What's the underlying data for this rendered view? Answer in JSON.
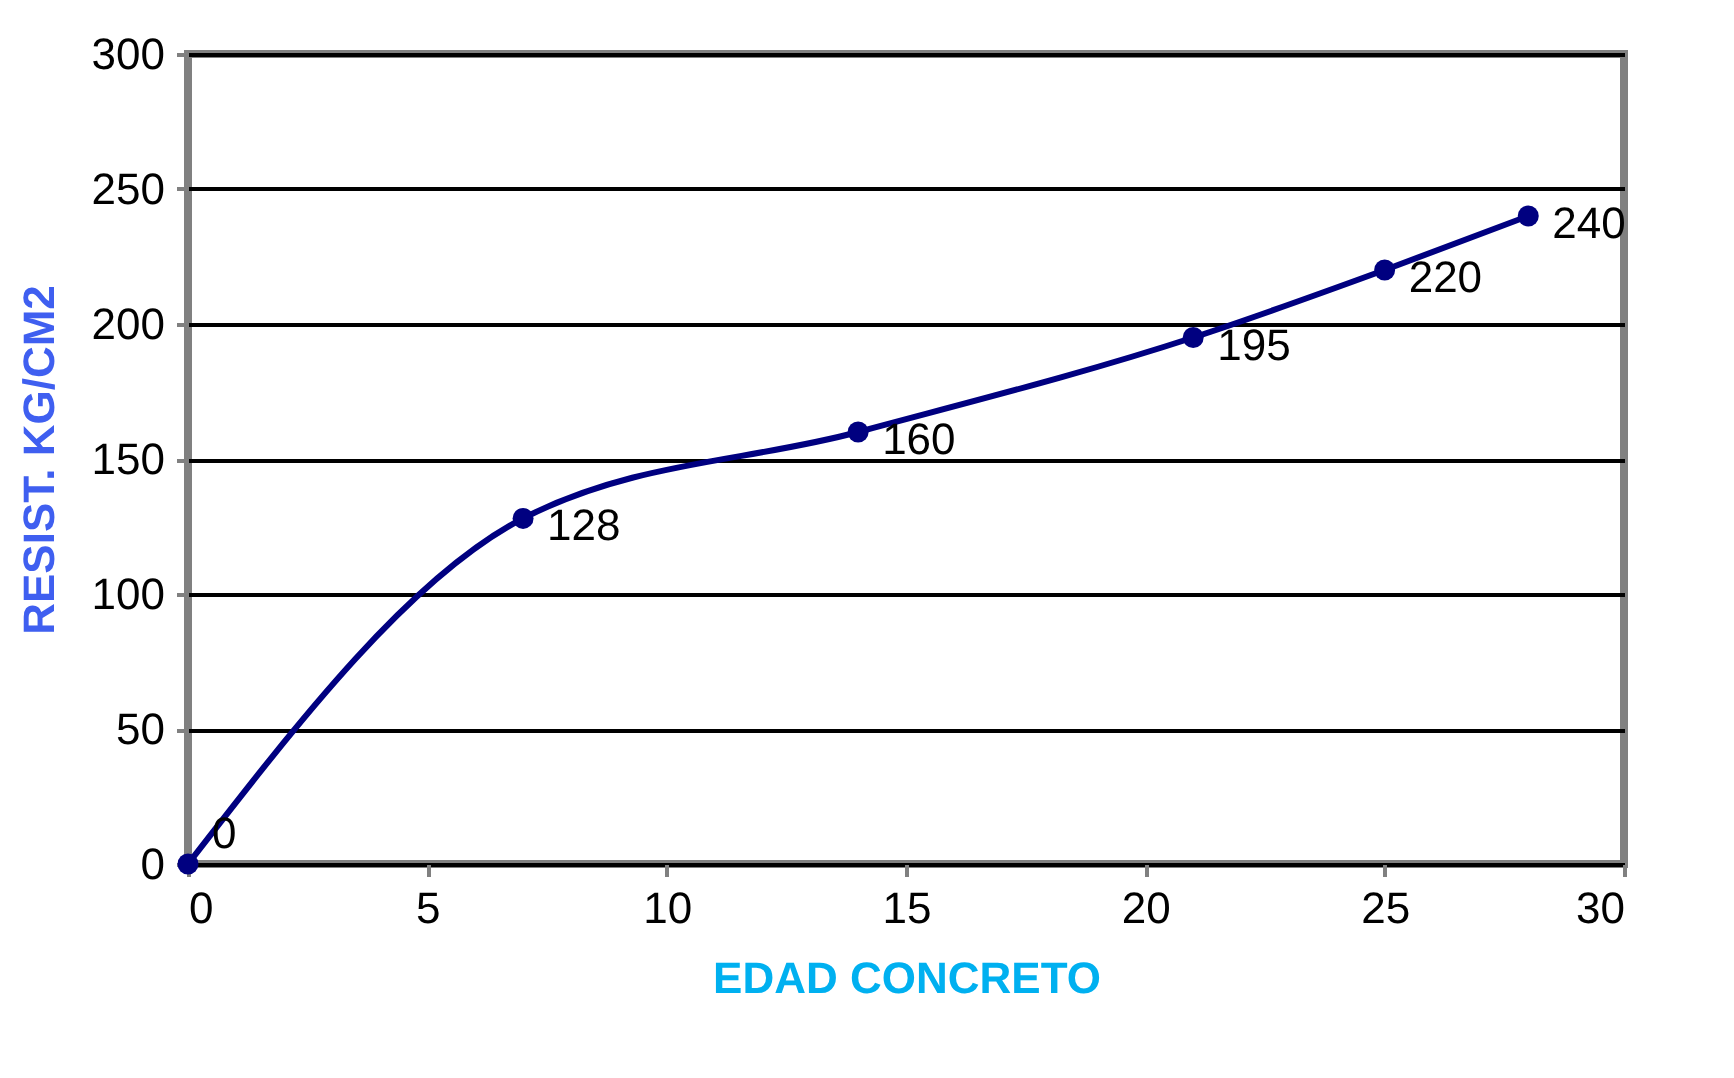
{
  "chart_data": {
    "type": "line",
    "xlabel": "EDAD CONCRETO",
    "ylabel": "RESIST. KG/CM2",
    "x": [
      0,
      7,
      14,
      21,
      25,
      28
    ],
    "series": [
      {
        "color": "#000080",
        "values": [
          0,
          128,
          160,
          195,
          220,
          240
        ]
      }
    ],
    "xlim": [
      0,
      30
    ],
    "xticks": [
      0,
      5,
      10,
      15,
      20,
      25,
      30
    ],
    "ylim": [
      0,
      300
    ],
    "yticks": [
      0,
      50,
      100,
      150,
      200,
      250,
      300
    ],
    "grid": "y",
    "marker": "circle",
    "line_style": "solid",
    "data_labels": true
  }
}
